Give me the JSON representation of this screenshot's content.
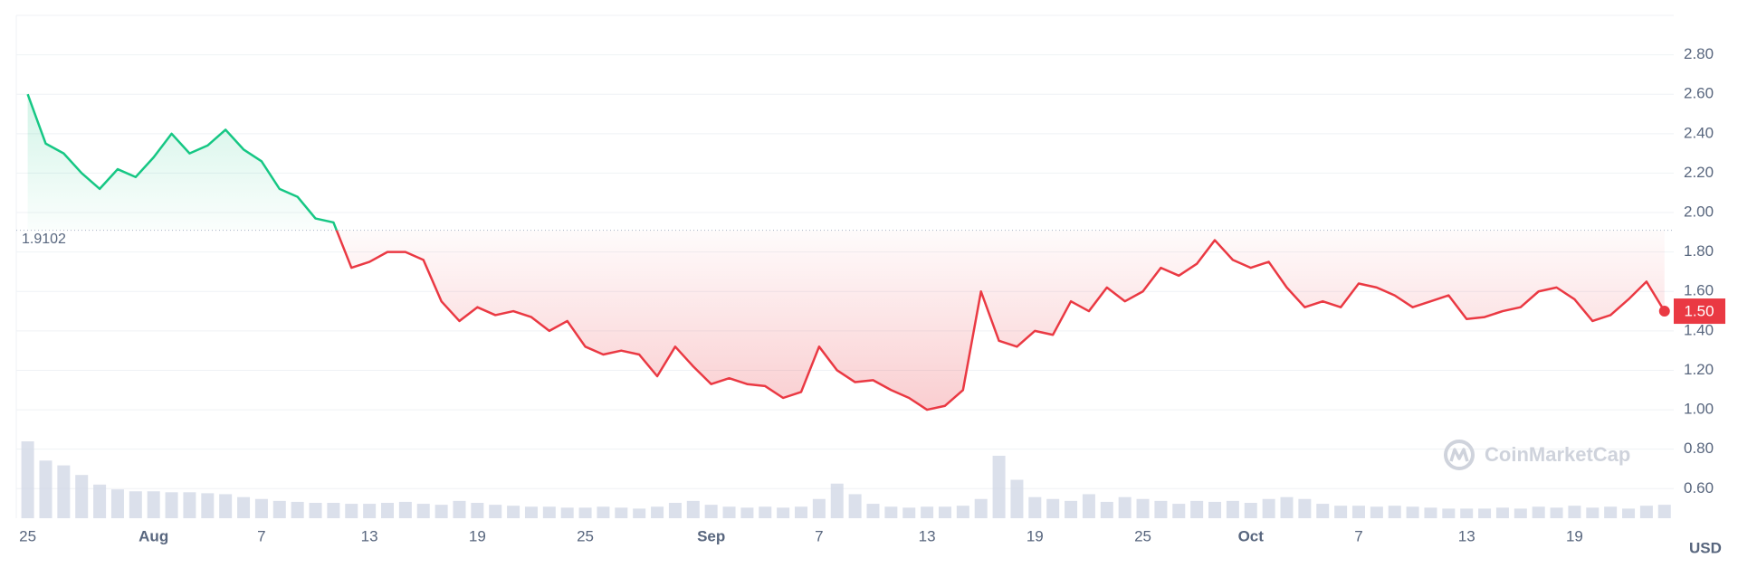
{
  "chart_data": {
    "type": "line",
    "categories": [
      "Jul 25",
      "Jul 26",
      "Jul 27",
      "Jul 28",
      "Jul 29",
      "Jul 30",
      "Jul 31",
      "Aug 1",
      "Aug 2",
      "Aug 3",
      "Aug 4",
      "Aug 5",
      "Aug 6",
      "Aug 7",
      "Aug 8",
      "Aug 9",
      "Aug 10",
      "Aug 11",
      "Aug 12",
      "Aug 13",
      "Aug 14",
      "Aug 15",
      "Aug 16",
      "Aug 17",
      "Aug 18",
      "Aug 19",
      "Aug 20",
      "Aug 21",
      "Aug 22",
      "Aug 23",
      "Aug 24",
      "Aug 25",
      "Aug 26",
      "Aug 27",
      "Aug 28",
      "Aug 29",
      "Aug 30",
      "Aug 31",
      "Sep 1",
      "Sep 2",
      "Sep 3",
      "Sep 4",
      "Sep 5",
      "Sep 6",
      "Sep 7",
      "Sep 8",
      "Sep 9",
      "Sep 10",
      "Sep 11",
      "Sep 12",
      "Sep 13",
      "Sep 14",
      "Sep 15",
      "Sep 16",
      "Sep 17",
      "Sep 18",
      "Sep 19",
      "Sep 20",
      "Sep 21",
      "Sep 22",
      "Sep 23",
      "Sep 24",
      "Sep 25",
      "Sep 26",
      "Sep 27",
      "Sep 28",
      "Sep 29",
      "Sep 30",
      "Oct 1",
      "Oct 2",
      "Oct 3",
      "Oct 4",
      "Oct 5",
      "Oct 6",
      "Oct 7",
      "Oct 8",
      "Oct 9",
      "Oct 10",
      "Oct 11",
      "Oct 12",
      "Oct 13",
      "Oct 14",
      "Oct 15",
      "Oct 16",
      "Oct 17",
      "Oct 18",
      "Oct 19",
      "Oct 20",
      "Oct 21",
      "Oct 22",
      "Oct 23",
      "Oct 24"
    ],
    "values": [
      2.6,
      2.35,
      2.3,
      2.2,
      2.12,
      2.22,
      2.18,
      2.28,
      2.4,
      2.3,
      2.34,
      2.42,
      2.32,
      2.26,
      2.12,
      2.08,
      1.97,
      1.95,
      1.72,
      1.75,
      1.8,
      1.8,
      1.76,
      1.55,
      1.45,
      1.52,
      1.48,
      1.5,
      1.47,
      1.4,
      1.45,
      1.32,
      1.28,
      1.3,
      1.28,
      1.17,
      1.32,
      1.22,
      1.13,
      1.16,
      1.13,
      1.12,
      1.06,
      1.09,
      1.32,
      1.2,
      1.14,
      1.15,
      1.1,
      1.06,
      1.0,
      1.02,
      1.1,
      1.6,
      1.35,
      1.32,
      1.4,
      1.38,
      1.55,
      1.5,
      1.62,
      1.55,
      1.6,
      1.72,
      1.68,
      1.74,
      1.86,
      1.76,
      1.72,
      1.75,
      1.62,
      1.52,
      1.55,
      1.52,
      1.64,
      1.62,
      1.58,
      1.52,
      1.55,
      1.58,
      1.46,
      1.47,
      1.5,
      1.52,
      1.6,
      1.62,
      1.56,
      1.45,
      1.48,
      1.56,
      1.65,
      1.5
    ],
    "volume": [
      80,
      60,
      55,
      45,
      35,
      30,
      28,
      28,
      27,
      27,
      26,
      25,
      22,
      20,
      18,
      17,
      16,
      16,
      15,
      15,
      16,
      17,
      15,
      14,
      18,
      16,
      14,
      13,
      12,
      12,
      11,
      11,
      12,
      11,
      10,
      12,
      16,
      18,
      14,
      12,
      11,
      12,
      11,
      12,
      20,
      36,
      25,
      15,
      12,
      11,
      12,
      12,
      13,
      20,
      65,
      40,
      22,
      20,
      18,
      25,
      17,
      22,
      20,
      18,
      15,
      18,
      17,
      18,
      16,
      20,
      22,
      20,
      15,
      13,
      13,
      12,
      13,
      12,
      11,
      10,
      10,
      10,
      11,
      10,
      12,
      11,
      13,
      11,
      12,
      10,
      13,
      14
    ],
    "baseline": 1.9102,
    "last_label": "1.50",
    "color_up": "#16c784",
    "color_down": "#ea3943",
    "volume_color": "#cfd6e4",
    "ylim": [
      0.45,
      3.0
    ],
    "yticks": [
      {
        "value": 0.6,
        "label": "0.60"
      },
      {
        "value": 0.8,
        "label": "0.80"
      },
      {
        "value": 1.0,
        "label": "1.00"
      },
      {
        "value": 1.2,
        "label": "1.20"
      },
      {
        "value": 1.4,
        "label": "1.40"
      },
      {
        "value": 1.6,
        "label": "1.60"
      },
      {
        "value": 1.8,
        "label": "1.80"
      },
      {
        "value": 2.0,
        "label": "2.00"
      },
      {
        "value": 2.2,
        "label": "2.20"
      },
      {
        "value": 2.4,
        "label": "2.40"
      },
      {
        "value": 2.6,
        "label": "2.60"
      },
      {
        "value": 2.8,
        "label": "2.80"
      }
    ],
    "xticks": [
      {
        "value": 0,
        "label": "25"
      },
      {
        "value": 7,
        "label": "Aug"
      },
      {
        "value": 13,
        "label": "7"
      },
      {
        "value": 19,
        "label": "13"
      },
      {
        "value": 25,
        "label": "19"
      },
      {
        "value": 31,
        "label": "25"
      },
      {
        "value": 38,
        "label": "Sep"
      },
      {
        "value": 44,
        "label": "7"
      },
      {
        "value": 50,
        "label": "13"
      },
      {
        "value": 56,
        "label": "19"
      },
      {
        "value": 62,
        "label": "25"
      },
      {
        "value": 68,
        "label": "Oct"
      },
      {
        "value": 74,
        "label": "7"
      },
      {
        "value": 80,
        "label": "13"
      },
      {
        "value": 86,
        "label": "19"
      }
    ],
    "currency": "USD",
    "watermark": "CoinMarketCap",
    "grid": true
  }
}
